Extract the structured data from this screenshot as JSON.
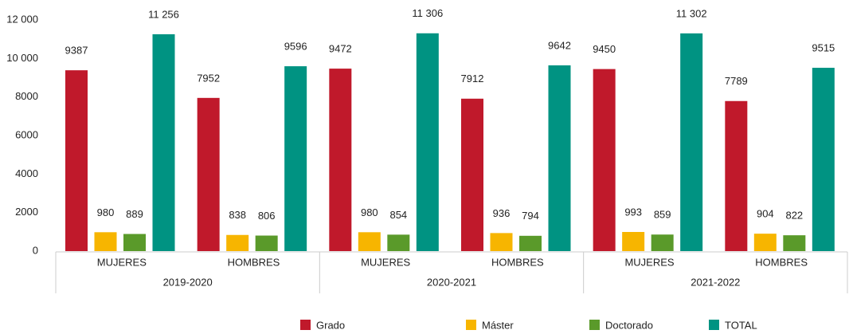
{
  "chart_data": {
    "type": "bar",
    "groups": [
      "2019-2020",
      "2020-2021",
      "2021-2022"
    ],
    "categories": [
      "MUJERES",
      "HOMBRES",
      "MUJERES",
      "HOMBRES",
      "MUJERES",
      "HOMBRES"
    ],
    "series": [
      {
        "name": "Grado",
        "color": "#c0192b",
        "values": [
          9387,
          7952,
          9472,
          7912,
          9450,
          7789
        ]
      },
      {
        "name": "Máster",
        "color": "#f7b500",
        "values": [
          980,
          838,
          980,
          936,
          993,
          904
        ]
      },
      {
        "name": "Doctorado",
        "color": "#5a9a2a",
        "values": [
          889,
          806,
          854,
          794,
          859,
          822
        ]
      },
      {
        "name": "TOTAL",
        "color": "#009382",
        "values": [
          11256,
          9596,
          11306,
          9642,
          11302,
          9515
        ],
        "value_labels": [
          "11 256",
          "9596",
          "11 306",
          "9642",
          "11 302",
          "9515"
        ]
      }
    ],
    "ylim": [
      0,
      12000
    ],
    "yticks": [
      0,
      2000,
      4000,
      6000,
      8000,
      {
        "value": 10000,
        "label": "10 000"
      },
      {
        "value": 12000,
        "label": "12 000"
      }
    ],
    "grid": false
  }
}
